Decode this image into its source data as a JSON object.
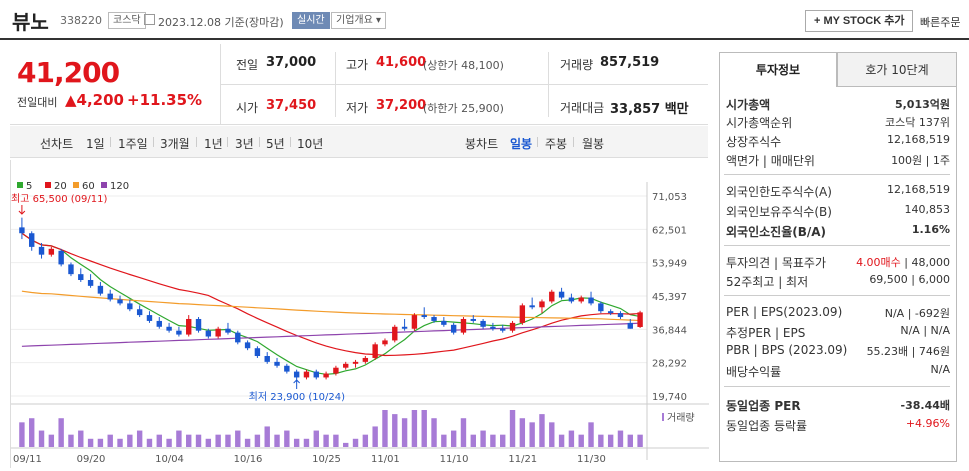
{
  "header": {
    "name": "뷰노",
    "code": "338220",
    "market": "코스닥",
    "date": "2023.12.08 기준(장마감)",
    "realtime": "실시간",
    "company_info": "기업개요 ▾",
    "mystock": "+ MY STOCK 추가",
    "quick_order": "빠른주문"
  },
  "price": {
    "current": "41,200",
    "change_label": "전일대비",
    "change": "▲4,200",
    "change_pct": "+11.35%",
    "prev_label": "전일",
    "prev": "37,000",
    "high_label": "고가",
    "high": "41,600",
    "upper_limit": "(상한가 48,100)",
    "volume_label": "거래량",
    "volume": "857,519",
    "open_label": "시가",
    "open": "37,450",
    "low_label": "저가",
    "low": "37,200",
    "lower_limit": "(하한가 25,900)",
    "amount_label": "거래대금",
    "amount": "33,857 백만"
  },
  "period": {
    "line_label": "선차트",
    "items": [
      "1일",
      "1주일",
      "3개월",
      "1년",
      "3년",
      "5년",
      "10년"
    ],
    "candle_label": "봉차트",
    "candle_items": [
      "일봉",
      "주봉",
      "월봉"
    ],
    "active_candle": "일봉"
  },
  "chart_data": {
    "type": "candlestick",
    "ma_legend": [
      "5",
      "20",
      "60",
      "120"
    ],
    "ma_colors": [
      "#2fa82f",
      "#e0161c",
      "#f39c2b",
      "#8e44ad"
    ],
    "y_ticks": [
      "71,053",
      "62,501",
      "53,949",
      "45,397",
      "36,844",
      "28,292",
      "19,740"
    ],
    "ylim": [
      19740,
      71053
    ],
    "x_labels": [
      "09/11",
      "09/20",
      "10/04",
      "10/16",
      "10/25",
      "11/01",
      "11/10",
      "11/21",
      "11/30"
    ],
    "high_annotation": "최고 65,500 (09/11)",
    "low_annotation": "최저 23,900 (10/24)",
    "volume_label": "거래량",
    "candles": [
      [
        63000,
        65500,
        60000,
        61500
      ],
      [
        61500,
        62000,
        57000,
        58000
      ],
      [
        58000,
        59000,
        55000,
        56000
      ],
      [
        56000,
        58000,
        55500,
        57500
      ],
      [
        57000,
        57500,
        53000,
        53500
      ],
      [
        53500,
        54000,
        50500,
        51000
      ],
      [
        51000,
        52500,
        49000,
        49500
      ],
      [
        49500,
        51000,
        47500,
        48000
      ],
      [
        48000,
        49000,
        45500,
        46000
      ],
      [
        46000,
        47000,
        44000,
        44500
      ],
      [
        44500,
        45500,
        43000,
        43500
      ],
      [
        43500,
        44500,
        41500,
        42000
      ],
      [
        42000,
        43000,
        40000,
        40500
      ],
      [
        40500,
        41500,
        38500,
        39000
      ],
      [
        39000,
        40000,
        37000,
        37500
      ],
      [
        37500,
        38500,
        36000,
        36500
      ],
      [
        36500,
        37500,
        35000,
        35500
      ],
      [
        35500,
        40500,
        35000,
        39500
      ],
      [
        39500,
        40000,
        36000,
        36500
      ],
      [
        36500,
        37000,
        34500,
        35000
      ],
      [
        35000,
        37500,
        34500,
        37000
      ],
      [
        37000,
        38500,
        35500,
        36000
      ],
      [
        36000,
        36500,
        33000,
        33500
      ],
      [
        33500,
        34000,
        31500,
        32000
      ],
      [
        32000,
        32500,
        29500,
        30000
      ],
      [
        30000,
        31000,
        28000,
        28500
      ],
      [
        28500,
        29500,
        27000,
        27500
      ],
      [
        27500,
        28000,
        25500,
        26000
      ],
      [
        26000,
        26500,
        23900,
        24500
      ],
      [
        24500,
        26500,
        24000,
        26000
      ],
      [
        26000,
        26500,
        24000,
        24500
      ],
      [
        24500,
        26000,
        24000,
        25500
      ],
      [
        25500,
        27500,
        25000,
        27000
      ],
      [
        27000,
        28500,
        26500,
        28000
      ],
      [
        28000,
        29000,
        27000,
        28500
      ],
      [
        28500,
        30000,
        28000,
        29500
      ],
      [
        29500,
        33500,
        29000,
        33000
      ],
      [
        33000,
        34500,
        32500,
        34000
      ],
      [
        34000,
        38000,
        33500,
        37500
      ],
      [
        37500,
        39500,
        36500,
        37000
      ],
      [
        37000,
        41000,
        36500,
        40500
      ],
      [
        40500,
        42500,
        39500,
        40000
      ],
      [
        40000,
        40500,
        38500,
        39000
      ],
      [
        39000,
        40000,
        37500,
        38000
      ],
      [
        38000,
        38500,
        35500,
        36000
      ],
      [
        36000,
        40000,
        35500,
        39500
      ],
      [
        39500,
        40500,
        38500,
        39000
      ],
      [
        39000,
        39500,
        37000,
        37500
      ],
      [
        37500,
        38500,
        36500,
        37000
      ],
      [
        37000,
        38000,
        36000,
        36500
      ],
      [
        36500,
        39000,
        36000,
        38500
      ],
      [
        38500,
        43500,
        38000,
        43000
      ],
      [
        43000,
        45000,
        42000,
        42500
      ],
      [
        42500,
        44500,
        41000,
        44000
      ],
      [
        44000,
        47000,
        43500,
        46500
      ],
      [
        46500,
        47500,
        44500,
        45000
      ],
      [
        45000,
        46000,
        43500,
        44000
      ],
      [
        44000,
        45500,
        43500,
        45000
      ],
      [
        45000,
        46500,
        43000,
        43500
      ],
      [
        43500,
        44000,
        41000,
        41500
      ],
      [
        41500,
        42000,
        40500,
        41000
      ],
      [
        41000,
        41500,
        39500,
        40000
      ],
      [
        38500,
        39500,
        37000,
        37000
      ],
      [
        37450,
        41600,
        37200,
        41200
      ]
    ],
    "volumes": [
      6,
      7,
      4,
      3,
      7,
      3,
      4,
      2,
      2,
      3,
      2,
      3,
      4,
      2,
      3,
      2,
      4,
      3,
      3,
      2,
      3,
      3,
      4,
      2,
      3,
      5,
      3,
      4,
      2,
      2,
      4,
      3,
      3,
      1,
      2,
      3,
      5,
      9,
      8,
      7,
      9,
      9,
      7,
      3,
      4,
      7,
      3,
      4,
      3,
      3,
      9,
      7,
      6,
      8,
      6,
      3,
      4,
      3,
      6,
      3,
      3,
      4,
      3,
      3
    ]
  },
  "invest": {
    "tab_invest": "투자정보",
    "tab_hoga": "호가 10단계",
    "rows": [
      {
        "label": "시가총액",
        "value": "5,013억원",
        "bold": true
      },
      {
        "label": "시가총액순위",
        "value": "코스닥 137위"
      },
      {
        "label": "상장주식수",
        "value": "12,168,519"
      },
      {
        "label": "액면가 | 매매단위",
        "value": "100원 | 1주"
      },
      {
        "label": "외국인한도주식수(A)",
        "value": "12,168,519"
      },
      {
        "label": "외국인보유주식수(B)",
        "value": "140,853"
      },
      {
        "label": "외국인소진율(B/A)",
        "value": "1.16%",
        "bold": true
      },
      {
        "label": "투자의견 | 목표주가",
        "value_red": "4.00매수",
        "value": " | 48,000"
      },
      {
        "label": "52주최고 | 최저",
        "value": "69,500 | 6,000"
      },
      {
        "label": "PER | EPS(2023.09)",
        "value": "N/A | -692원"
      },
      {
        "label": "추정PER | EPS",
        "value": "N/A | N/A"
      },
      {
        "label": "PBR | BPS (2023.09)",
        "value": "55.23배 | 746원"
      },
      {
        "label": "배당수익률",
        "value": "N/A"
      },
      {
        "label": "동일업종 PER",
        "value": "-38.44배",
        "bold": true
      },
      {
        "label": "동일업종 등락률",
        "value_red": "+4.96%"
      }
    ]
  }
}
